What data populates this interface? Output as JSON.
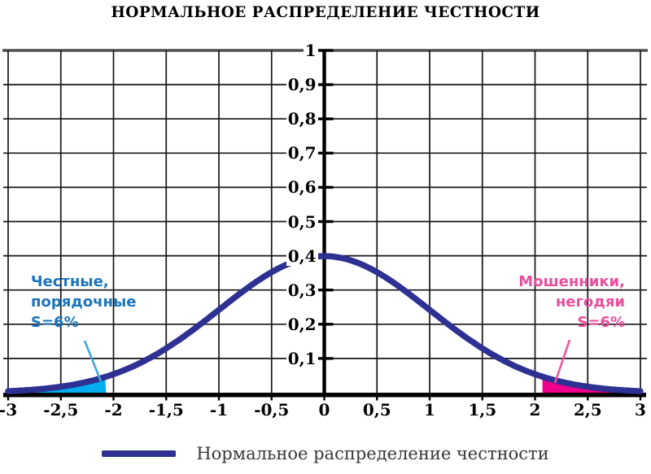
{
  "chart_data": {
    "type": "area",
    "title": "НОРМАЛЬНОЕ РАСПРЕДЕЛЕНИЕ ЧЕСТНОСТИ",
    "xlim": [
      -3,
      3
    ],
    "ylim": [
      0,
      1
    ],
    "x_tick_step": 0.5,
    "y_tick_step": 0.1,
    "grid": true,
    "x_ticks": [
      -3,
      -2.5,
      -2,
      -1.5,
      -1,
      -0.5,
      0,
      0.5,
      1,
      1.5,
      2,
      2.5,
      3
    ],
    "x_tick_labels": [
      "-3",
      "-2,5",
      "-2",
      "-1,5",
      "-1",
      "-0,5",
      "0",
      "0,5",
      "1",
      "1,5",
      "2",
      "2,5",
      "3"
    ],
    "y_ticks": [
      1,
      0.9,
      0.8,
      0.7,
      0.6,
      0.5,
      0.4,
      0.3,
      0.2,
      0.1
    ],
    "y_tick_labels": [
      "1",
      "0,9",
      "0,8",
      "0,7",
      "0,6",
      "0,5",
      "0,4",
      "0,3",
      "0,2",
      "0,1"
    ],
    "series": [
      {
        "name": "Нормальное распределение честности",
        "color": "#2E3192",
        "curve": "standard_normal_pdf",
        "gauss": {
          "mean": 0,
          "sd": 1
        },
        "points": {
          "x": [
            -3,
            -2.75,
            -2.5,
            -2.25,
            -2,
            -1.75,
            -1.5,
            -1.25,
            -1,
            -0.75,
            -0.5,
            -0.25,
            0,
            0.25,
            0.5,
            0.75,
            1,
            1.25,
            1.5,
            1.75,
            2,
            2.25,
            2.5,
            2.75,
            3
          ],
          "y": [
            0.0044,
            0.0091,
            0.0175,
            0.0317,
            0.054,
            0.0863,
            0.1295,
            0.1826,
            0.242,
            0.3011,
            0.3521,
            0.3867,
            0.3989,
            0.3867,
            0.3521,
            0.3011,
            0.242,
            0.1826,
            0.1295,
            0.0863,
            0.054,
            0.0317,
            0.0175,
            0.0091,
            0.0044
          ]
        }
      }
    ],
    "shaded_regions": [
      {
        "side": "left",
        "range": [
          -3,
          -2.07
        ],
        "color": "#00AEEF",
        "area_share": "S=6%"
      },
      {
        "side": "right",
        "range": [
          2.07,
          3
        ],
        "color": "#EC008C",
        "area_share": "S=6%"
      }
    ],
    "annotations": [
      {
        "lines": [
          "Честные,",
          "порядочные",
          "S=6%"
        ],
        "color": "#1C75BC",
        "pointer_color": "#3FA9E0",
        "align": "left"
      },
      {
        "lines": [
          "Мошенники,",
          "негодяи",
          "S=6%"
        ],
        "color": "#E84F9C",
        "pointer_color": "#F0549E",
        "align": "right"
      }
    ],
    "legend": {
      "position": "bottom-center"
    },
    "axis_color": "#000000",
    "grid_color": "#161616",
    "top_border_color": "#4d4d4d"
  }
}
